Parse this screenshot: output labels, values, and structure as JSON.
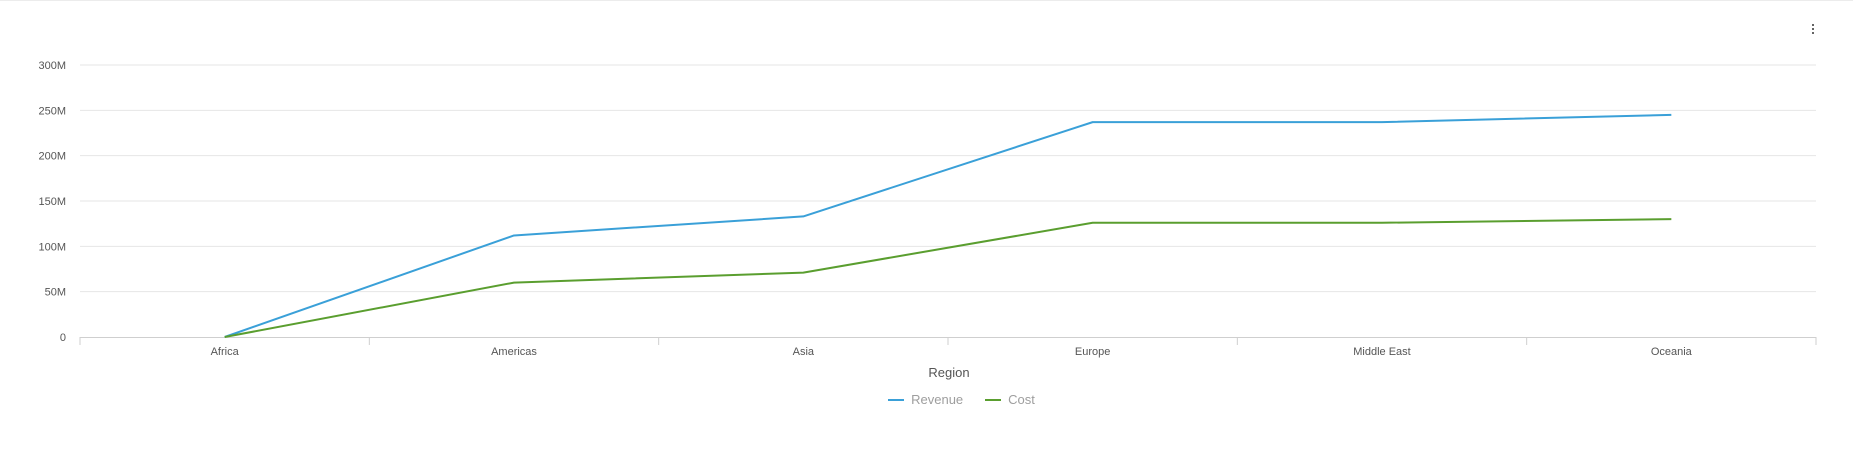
{
  "menu": {
    "icon": "more-vertical-icon"
  },
  "chart_data": {
    "type": "line",
    "title": "",
    "xlabel": "Region",
    "ylabel": "",
    "categories": [
      "Africa",
      "Americas",
      "Asia",
      "Europe",
      "Middle East",
      "Oceania"
    ],
    "ylim": [
      0,
      300000000
    ],
    "yticks": [
      {
        "value": 0,
        "label": "0"
      },
      {
        "value": 50000000,
        "label": "50M"
      },
      {
        "value": 100000000,
        "label": "100M"
      },
      {
        "value": 150000000,
        "label": "150M"
      },
      {
        "value": 200000000,
        "label": "200M"
      },
      {
        "value": 250000000,
        "label": "250M"
      },
      {
        "value": 300000000,
        "label": "300M"
      }
    ],
    "grid": true,
    "legend_position": "bottom-center",
    "series": [
      {
        "name": "Revenue",
        "color": "#3aa0d8",
        "values": [
          0,
          112000000,
          133000000,
          237000000,
          237000000,
          245000000
        ]
      },
      {
        "name": "Cost",
        "color": "#5a9e2f",
        "values": [
          0,
          60000000,
          71000000,
          126000000,
          126000000,
          130000000
        ]
      }
    ]
  }
}
